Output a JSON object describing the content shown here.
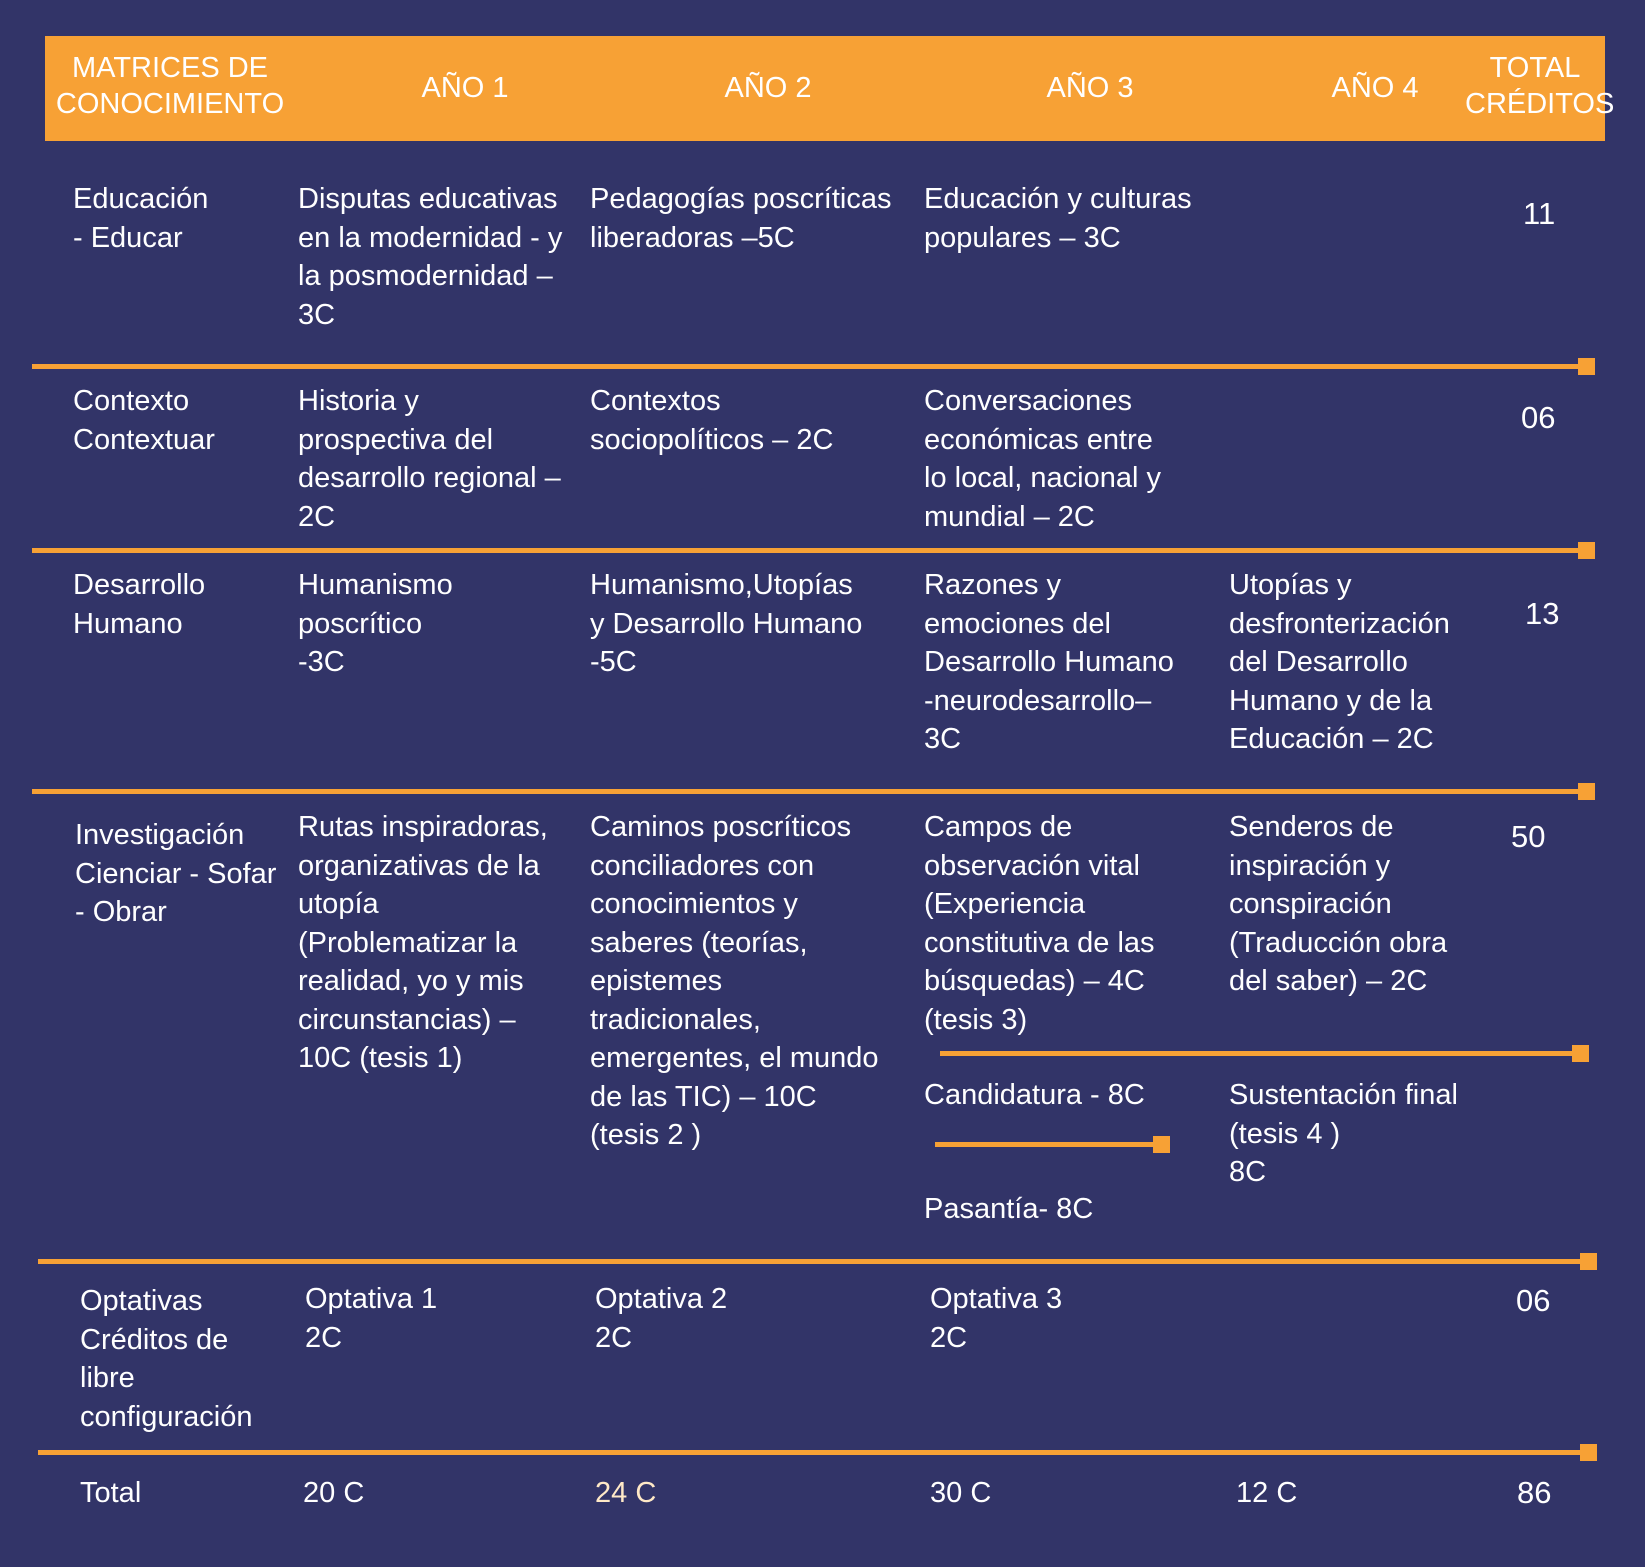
{
  "header": {
    "matrices": "MATRICES DE\nCONOCIMIENTO",
    "year1": "AÑO 1",
    "year2": "AÑO 2",
    "year3": "AÑO 3",
    "year4": "AÑO 4",
    "total": "TOTAL\nCRÉDITOS"
  },
  "rows": {
    "educacion": {
      "matrix": "Educación\n- Educar",
      "y1": "Disputas educativas\nen la modernidad - y\nla posmodernidad –\n3C",
      "y2": "Pedagogías poscríticas\nliberadoras –5C",
      "y3": "Educación y culturas\npopulares – 3C",
      "total": "11"
    },
    "contexto": {
      "matrix": "Contexto\nContextuar",
      "y1": "Historia y\nprospectiva del\ndesarrollo regional –\n2C",
      "y2": "Contextos\nsociopolíticos – 2C",
      "y3": "Conversaciones\neconómicas entre\nlo local, nacional y\nmundial – 2C",
      "total": "06"
    },
    "desarrollo": {
      "matrix": "Desarrollo\nHumano",
      "y1": "Humanismo\nposcrítico\n-3C",
      "y2": "Humanismo,Utopías\ny Desarrollo Humano\n-5C",
      "y3": "Razones y\nemociones del\nDesarrollo Humano\n-neurodesarrollo–\n3C",
      "y4": "Utopías y\ndesfronterización\ndel Desarrollo\nHumano y de la\nEducación – 2C",
      "total": "13"
    },
    "investigacion": {
      "matrix": "Investigación\nCienciar - Sofar\n- Obrar",
      "y1": "Rutas inspiradoras,\norganizativas de la\nutopía\n(Problematizar la\nrealidad, yo y mis\ncircunstancias) –\n10C (tesis 1)",
      "y2": "Caminos poscríticos\nconciliadores con\nconocimientos y\nsaberes (teorías,\nepistemes\ntradicionales,\nemergentes, el mundo\nde las TIC) – 10C\n(tesis 2 )",
      "y3": "Campos de\nobservación vital\n(Experiencia\nconstitutiva de las\nbúsquedas) – 4C\n(tesis 3)",
      "y4": "Senderos de\ninspiración y\nconspiración\n(Traducción obra\ndel saber) – 2C",
      "y3_candidatura": "Candidatura - 8C",
      "y3_pasantia": "Pasantía-  8C",
      "y4_sustentacion": "Sustentación final\n(tesis 4 )\n 8C",
      "total": "50"
    },
    "optativas": {
      "matrix": "Optativas\nCréditos de\nlibre\nconfiguración",
      "y1": "Optativa 1\n2C",
      "y2": "Optativa 2\n2C",
      "y3": "Optativa 3\n2C",
      "total": "06"
    },
    "total_row": {
      "label": "Total",
      "y1": "20 C",
      "y2": "24 C",
      "y3": "30 C",
      "y4": "12 C",
      "total": "86"
    }
  },
  "colors": {
    "background": "#323468",
    "accent": "#f7a135",
    "text": "#ffffff"
  }
}
